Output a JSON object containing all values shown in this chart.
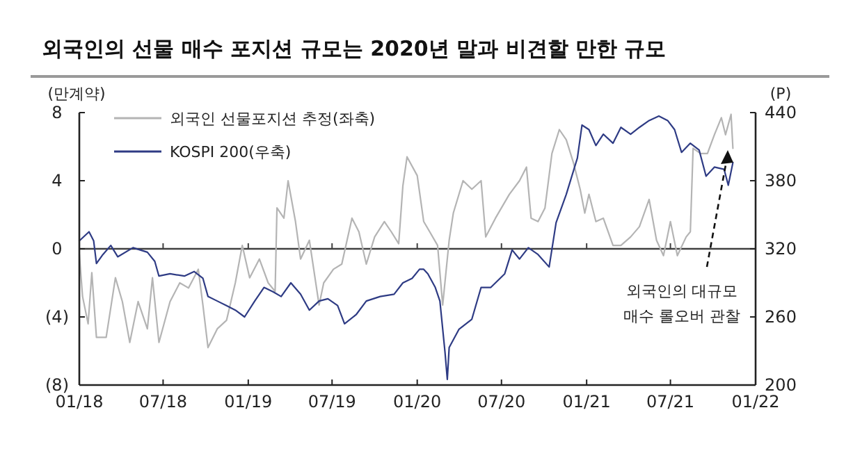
{
  "chart_data": {
    "type": "line",
    "title": "외국인의 선물 매수 포지션 규모는 2020년 말과 비견할 만한 규모",
    "ylabel": "(만계약)",
    "y2label": "(P)",
    "annotations": [
      "외국인의 대규모\n매수 롤오버 관찰"
    ],
    "xlim": [
      "2018-01-01",
      "2022-01-01"
    ],
    "xticks": [
      {
        "value": "2018-01-01",
        "label": "01/18"
      },
      {
        "value": "2018-07-01",
        "label": "07/18"
      },
      {
        "value": "2019-01-01",
        "label": "01/19"
      },
      {
        "value": "2019-07-01",
        "label": "07/19"
      },
      {
        "value": "2020-01-01",
        "label": "01/20"
      },
      {
        "value": "2020-07-01",
        "label": "07/20"
      },
      {
        "value": "2021-01-01",
        "label": "01/21"
      },
      {
        "value": "2021-07-01",
        "label": "07/21"
      },
      {
        "value": "2022-01-01",
        "label": "01/22"
      }
    ],
    "ylim": [
      -8,
      8
    ],
    "yticks": [
      {
        "value": -8,
        "label": "(8)"
      },
      {
        "value": -4,
        "label": "(4)"
      },
      0,
      4,
      8
    ],
    "y2lim": [
      200,
      440
    ],
    "y2ticks": [
      200,
      260,
      320,
      380,
      440
    ],
    "ref_lines": [
      {
        "axis": "y",
        "value": 0,
        "color": "#404040"
      }
    ],
    "legend": "top left",
    "grid": false,
    "line_style": "solid",
    "series": [
      {
        "name": "외국인 선물포지션 추정(좌축)",
        "color": "#b4b4b4",
        "x": [
          "2018-01-01",
          "2018-01-08",
          "2018-01-20",
          "2018-01-28",
          "2018-02-07",
          "2018-02-28",
          "2018-03-20",
          "2018-04-04",
          "2018-04-20",
          "2018-05-08",
          "2018-05-28",
          "2018-06-08",
          "2018-06-22",
          "2018-07-16",
          "2018-08-06",
          "2018-08-25",
          "2018-09-15",
          "2018-09-25",
          "2018-10-06",
          "2018-10-26",
          "2018-11-15",
          "2018-12-04",
          "2018-12-19",
          "2019-01-04",
          "2019-01-25",
          "2019-02-13",
          "2019-02-28",
          "2019-03-04",
          "2019-03-19",
          "2019-03-28",
          "2019-04-13",
          "2019-04-24",
          "2019-05-13",
          "2019-06-03",
          "2019-06-13",
          "2019-07-04",
          "2019-07-22",
          "2019-08-13",
          "2019-08-28",
          "2019-09-13",
          "2019-10-01",
          "2019-10-22",
          "2019-11-06",
          "2019-11-22",
          "2019-12-01",
          "2019-12-10",
          "2020-01-01",
          "2020-01-15",
          "2020-01-28",
          "2020-02-14",
          "2020-02-25",
          "2020-03-10",
          "2020-03-19",
          "2020-04-09",
          "2020-04-28",
          "2020-05-18",
          "2020-05-28",
          "2020-06-18",
          "2020-07-18",
          "2020-08-09",
          "2020-08-24",
          "2020-09-03",
          "2020-09-18",
          "2020-10-03",
          "2020-10-18",
          "2020-11-03",
          "2020-11-18",
          "2020-12-03",
          "2020-12-18",
          "2020-12-28",
          "2021-01-06",
          "2021-01-21",
          "2021-02-06",
          "2021-02-27",
          "2021-03-16",
          "2021-04-06",
          "2021-04-25",
          "2021-05-16",
          "2021-06-01",
          "2021-06-16",
          "2021-07-01",
          "2021-07-16",
          "2021-08-04",
          "2021-08-13",
          "2021-08-19",
          "2021-09-04",
          "2021-09-19",
          "2021-10-04",
          "2021-10-19",
          "2021-10-28",
          "2021-11-09",
          "2021-11-13"
        ],
        "values": [
          -0.3,
          -2.8,
          -4.4,
          -1.4,
          -5.2,
          -5.2,
          -1.7,
          -3.1,
          -5.5,
          -3.1,
          -4.7,
          -1.7,
          -5.5,
          -3.1,
          -2.0,
          -2.3,
          -1.2,
          -3.3,
          -5.8,
          -4.7,
          -4.2,
          -2.0,
          0.2,
          -1.7,
          -0.6,
          -2.0,
          -2.5,
          2.4,
          1.8,
          4.0,
          1.6,
          -0.6,
          0.5,
          -3.3,
          -2.0,
          -1.2,
          -0.9,
          1.8,
          1.0,
          -0.9,
          0.7,
          1.6,
          1.0,
          0.3,
          3.7,
          5.4,
          4.3,
          1.6,
          1.0,
          0.2,
          -3.3,
          0.5,
          2.1,
          4.0,
          3.5,
          4.0,
          0.7,
          1.8,
          3.2,
          4.0,
          4.8,
          1.8,
          1.6,
          2.4,
          5.6,
          7.0,
          6.4,
          5.1,
          3.5,
          2.1,
          3.2,
          1.6,
          1.8,
          0.2,
          0.2,
          0.7,
          1.3,
          2.9,
          0.5,
          -0.4,
          1.6,
          -0.4,
          0.7,
          1.0,
          5.9,
          5.6,
          5.6,
          6.7,
          7.7,
          6.7,
          7.9,
          5.9
        ]
      },
      {
        "name": "KOSPI 200(우축)",
        "color": "#2e3b84",
        "axis": "y2",
        "x": [
          "2018-01-01",
          "2018-01-22",
          "2018-02-01",
          "2018-02-07",
          "2018-02-21",
          "2018-03-10",
          "2018-03-25",
          "2018-04-27",
          "2018-05-28",
          "2018-06-13",
          "2018-06-22",
          "2018-07-16",
          "2018-08-16",
          "2018-09-06",
          "2018-09-25",
          "2018-10-06",
          "2018-10-26",
          "2018-11-15",
          "2018-12-04",
          "2018-12-24",
          "2019-01-15",
          "2019-02-04",
          "2019-02-24",
          "2019-03-13",
          "2019-04-03",
          "2019-04-24",
          "2019-05-13",
          "2019-06-03",
          "2019-06-22",
          "2019-07-13",
          "2019-07-28",
          "2019-08-22",
          "2019-09-13",
          "2019-10-13",
          "2019-11-12",
          "2019-12-01",
          "2019-12-21",
          "2020-01-06",
          "2020-01-15",
          "2020-01-24",
          "2020-02-09",
          "2020-02-19",
          "2020-03-01",
          "2020-03-06",
          "2020-03-10",
          "2020-03-31",
          "2020-04-28",
          "2020-05-18",
          "2020-06-08",
          "2020-07-08",
          "2020-07-24",
          "2020-08-09",
          "2020-08-28",
          "2020-09-18",
          "2020-10-12",
          "2020-10-27",
          "2020-11-18",
          "2020-12-12",
          "2020-12-22",
          "2021-01-06",
          "2021-01-21",
          "2021-02-06",
          "2021-02-27",
          "2021-03-16",
          "2021-04-06",
          "2021-04-25",
          "2021-05-16",
          "2021-06-06",
          "2021-06-25",
          "2021-07-10",
          "2021-07-25",
          "2021-08-13",
          "2021-09-01",
          "2021-09-16",
          "2021-10-04",
          "2021-10-25",
          "2021-11-03",
          "2021-11-13"
        ],
        "values": [
          327,
          335,
          327,
          307,
          315,
          323,
          313,
          321,
          317,
          309,
          296,
          298,
          296,
          300,
          294,
          278,
          274,
          270,
          266,
          260,
          274,
          286,
          282,
          278,
          290,
          280,
          266,
          274,
          276,
          270,
          254,
          262,
          274,
          278,
          280,
          290,
          294,
          302,
          302,
          298,
          286,
          274,
          229,
          205,
          233,
          249,
          258,
          286,
          286,
          298,
          319,
          311,
          321,
          315,
          304,
          343,
          368,
          400,
          429,
          425,
          411,
          421,
          413,
          427,
          421,
          427,
          433,
          437,
          433,
          425,
          405,
          413,
          407,
          384,
          392,
          390,
          376,
          396
        ]
      }
    ]
  }
}
